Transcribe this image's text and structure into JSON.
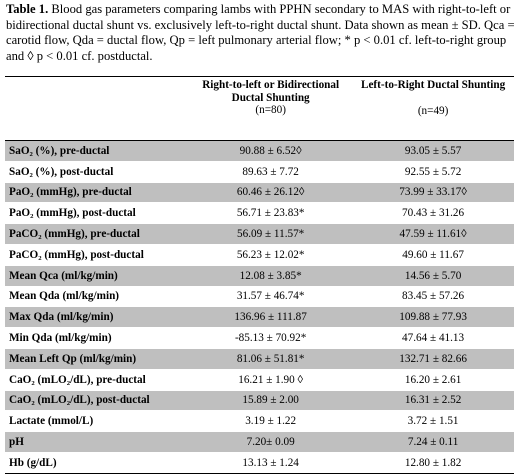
{
  "caption": {
    "title": "Table 1.",
    "text": "Blood gas parameters comparing lambs with PPHN  secondary to MAS with right-to-left or bidirectional ductal shunt vs. exclusively left-to-right ductal shunt. Data shown as mean ± SD. Qca = carotid flow, Qda = ductal flow, Qp = left pulmonary arterial flow; * p < 0.01 cf. left-to-right group and ◊ p < 0.01 cf. postductal."
  },
  "columns": [
    {
      "label": "Right-to-left or Bidirectional Ductal Shunting",
      "n": "(n=80)"
    },
    {
      "label": "Left-to-Right Ductal Shunting",
      "n": "(n=49)"
    }
  ],
  "rows": [
    {
      "label": "SaO₂ (%), pre-ductal",
      "a": "90.88 ± 6.52◊",
      "b": "93.05 ± 5.57",
      "shade": true
    },
    {
      "label": "SaO₂ (%), post-ductal",
      "a": "89.63 ± 7.72",
      "b": "92.55 ± 5.72",
      "shade": false
    },
    {
      "label": "PaO₂ (mmHg), pre-ductal",
      "a": "60.46 ± 26.12◊",
      "b": "73.99 ± 33.17◊",
      "shade": true
    },
    {
      "label": "PaO₂ (mmHg), post-ductal",
      "a": "56.71 ± 23.83*",
      "b": "70.43 ± 31.26",
      "shade": false
    },
    {
      "label": "PaCO₂ (mmHg), pre-ductal",
      "a": "56.09 ± 11.57*",
      "b": "47.59 ± 11.61◊",
      "shade": true
    },
    {
      "label": "PaCO₂ (mmHg), post-ductal",
      "a": "56.23 ± 12.02*",
      "b": "49.60 ± 11.67",
      "shade": false
    },
    {
      "label": "Mean Qca (ml/kg/min)",
      "a": "12.08 ± 3.85*",
      "b": "14.56 ± 5.70",
      "shade": true
    },
    {
      "label": "Mean Qda (ml/kg/min)",
      "a": "31.57 ± 46.74*",
      "b": "83.45 ± 57.26",
      "shade": false
    },
    {
      "label": "Max Qda (ml/kg/min)",
      "a": "136.96 ± 111.87",
      "b": "109.88 ± 77.93",
      "shade": true
    },
    {
      "label": "Min Qda (ml/kg/min)",
      "a": "-85.13 ± 70.92*",
      "b": "47.64 ± 41.13",
      "shade": false
    },
    {
      "label": "Mean Left Qp (ml/kg/min)",
      "a": "81.06 ± 51.81*",
      "b": "132.71 ± 82.66",
      "shade": true
    },
    {
      "label": "CaO₂ (mLO₂/dL), pre-ductal",
      "a": "16.21 ± 1.90 ◊",
      "b": "16.20 ± 2.61",
      "shade": false
    },
    {
      "label": "CaO₂ (mLO₂/dL), post-ductal",
      "a": "15.89 ± 2.00",
      "b": "16.31 ± 2.52",
      "shade": true
    },
    {
      "label": "Lactate (mmol/L)",
      "a": "3.19 ± 1.22",
      "b": "3.72 ± 1.51",
      "shade": false
    },
    {
      "label": "pH",
      "a": "7.20± 0.09",
      "b": "7.24 ± 0.11",
      "shade": true
    },
    {
      "label": "Hb (g/dL)",
      "a": "13.13 ± 1.24",
      "b": "12.80 ± 1.82",
      "shade": false
    }
  ]
}
